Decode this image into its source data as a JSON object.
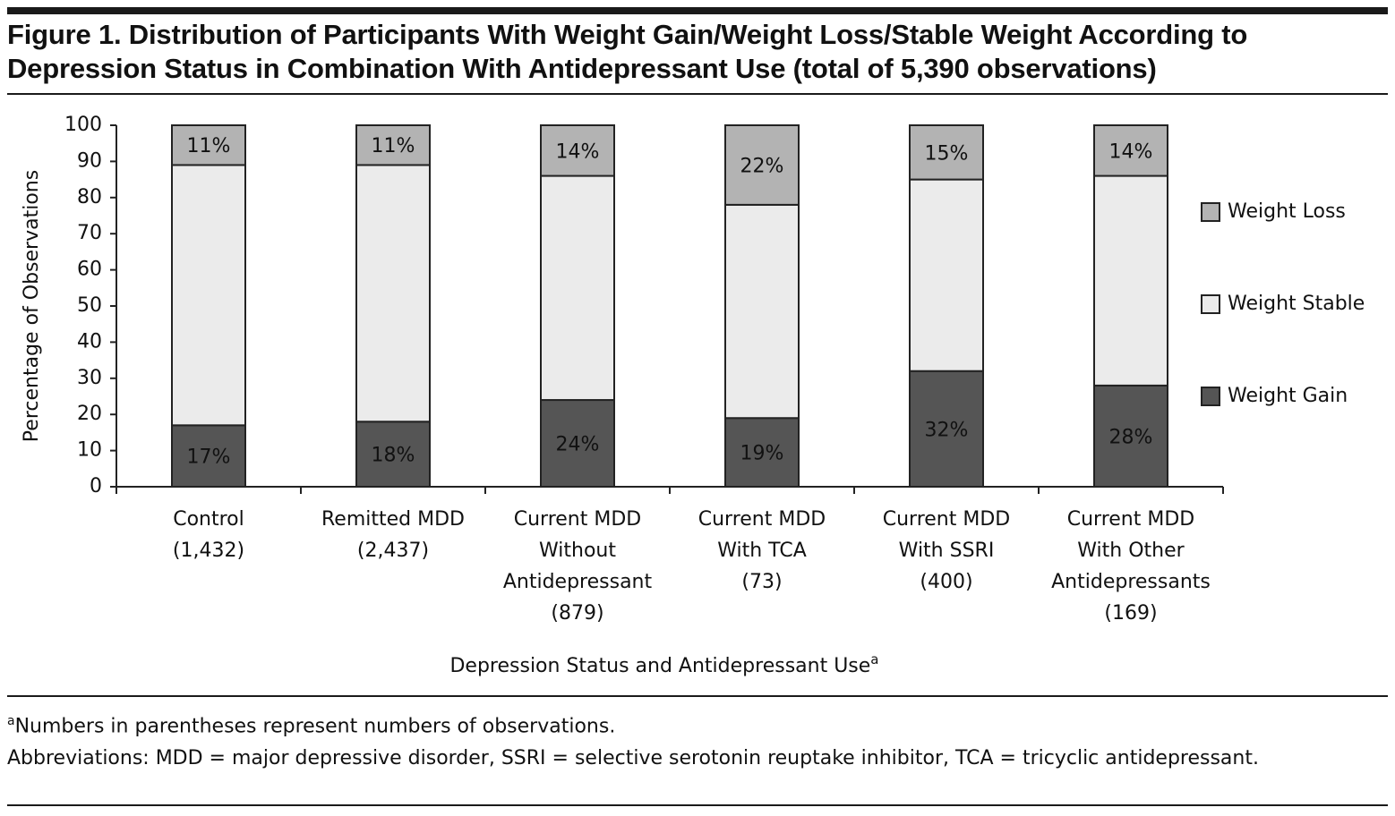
{
  "chart_data": {
    "type": "stacked_bar",
    "title": "Figure 1. Distribution of Participants With Weight Gain/Weight Loss/Stable Weight According to Depression Status in Combination With Antidepressant Use (total of 5,390 observations)",
    "ylabel": "Percentage of Observations",
    "xlabel": "Depression Status and Antidepressant Use",
    "xlabel_note": "a",
    "categories": [
      "Control\n(1,432)",
      "Remitted MDD\n(2,437)",
      "Current MDD\nWithout\nAntidepressant\n(879)",
      "Current MDD\nWith TCA\n(73)",
      "Current MDD\nWith SSRI\n(400)",
      "Current MDD\nWith Other\nAntidepressants\n(169)"
    ],
    "series": [
      {
        "name": "Weight Gain",
        "color": "#555555",
        "values": [
          17,
          18,
          24,
          19,
          32,
          28
        ],
        "value_labels": [
          "17%",
          "18%",
          "24%",
          "19%",
          "32%",
          "28%"
        ]
      },
      {
        "name": "Weight Stable",
        "color": "#ebebeb",
        "values": [
          72,
          71,
          62,
          59,
          53,
          58
        ]
      },
      {
        "name": "Weight Loss",
        "color": "#b3b3b3",
        "values": [
          11,
          11,
          14,
          22,
          15,
          14
        ],
        "value_labels": [
          "11%",
          "11%",
          "14%",
          "22%",
          "15%",
          "14%"
        ]
      }
    ],
    "ylim": [
      0,
      100
    ],
    "yticks": [
      0,
      10,
      20,
      30,
      40,
      50,
      60,
      70,
      80,
      90,
      100
    ],
    "legend": "right",
    "grid": false
  },
  "footnotes": [
    {
      "marker": "a",
      "text": "Numbers in parentheses represent numbers of observations."
    },
    {
      "text": "Abbreviations: MDD = major depressive disorder, SSRI = selective serotonin reuptake inhibitor, TCA = tricyclic antidepressant."
    }
  ]
}
